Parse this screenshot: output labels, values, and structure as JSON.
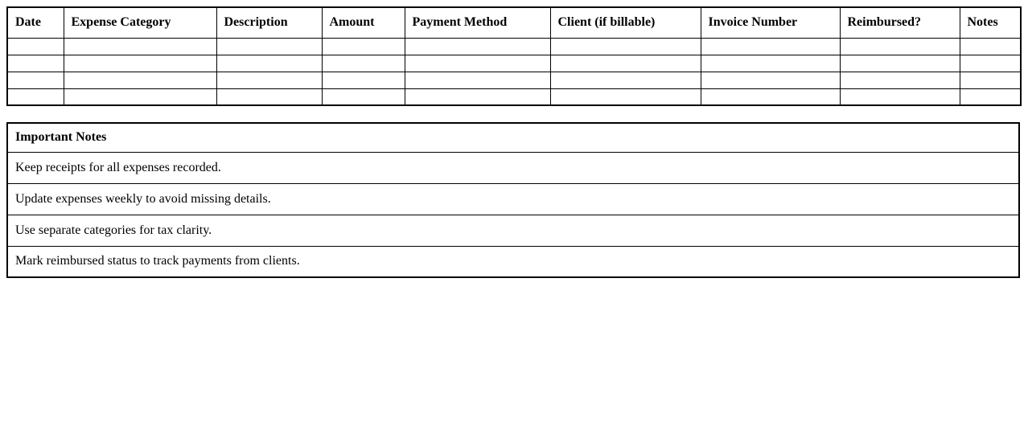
{
  "colors": {
    "background": "#ffffff",
    "border": "#000000",
    "text": "#000000"
  },
  "expense_table": {
    "columns": [
      "Date",
      "Expense Category",
      "Description",
      "Amount",
      "Payment Method",
      "Client (if billable)",
      "Invoice Number",
      "Reimbursed?",
      "Notes"
    ],
    "rows": [
      [
        "",
        "",
        "",
        "",
        "",
        "",
        "",
        "",
        ""
      ],
      [
        "",
        "",
        "",
        "",
        "",
        "",
        "",
        "",
        ""
      ],
      [
        "",
        "",
        "",
        "",
        "",
        "",
        "",
        "",
        ""
      ],
      [
        "",
        "",
        "",
        "",
        "",
        "",
        "",
        "",
        ""
      ]
    ]
  },
  "notes_table": {
    "header": "Important Notes",
    "rows": [
      "Keep receipts for all expenses recorded.",
      "Update expenses weekly to avoid missing details.",
      "Use separate categories for tax clarity.",
      "Mark reimbursed status to track payments from clients."
    ]
  }
}
